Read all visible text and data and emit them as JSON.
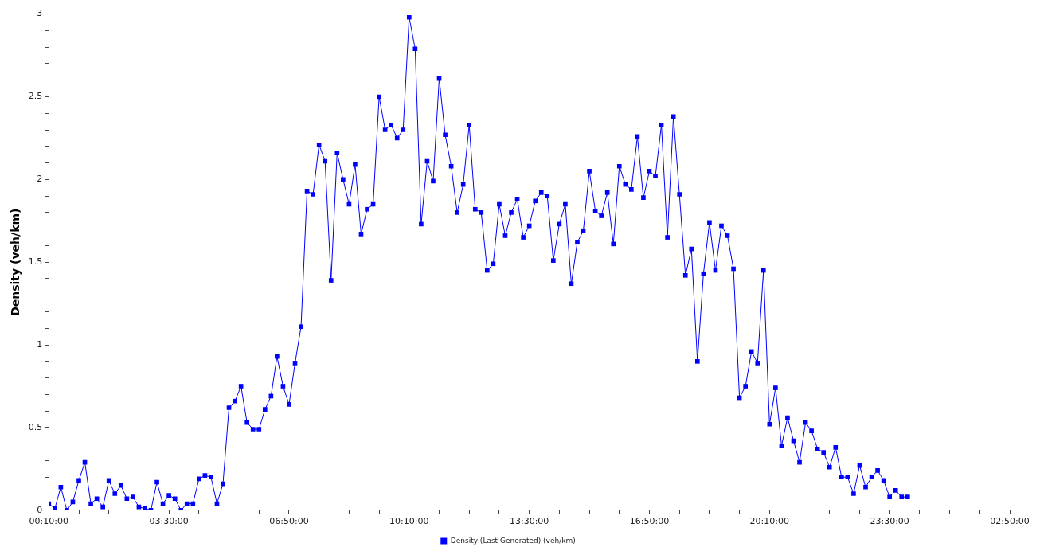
{
  "chart_data": {
    "type": "line",
    "ylabel": "Density (veh/km)",
    "x": [
      "2000-01-01T00:10",
      "2000-01-01T00:20",
      "2000-01-01T00:30",
      "2000-01-01T00:40",
      "2000-01-01T00:50",
      "2000-01-01T01:00",
      "2000-01-01T01:10",
      "2000-01-01T01:20",
      "2000-01-01T01:30",
      "2000-01-01T01:40",
      "2000-01-01T01:50",
      "2000-01-01T02:00",
      "2000-01-01T02:10",
      "2000-01-01T02:20",
      "2000-01-01T02:30",
      "2000-01-01T02:40",
      "2000-01-01T02:50",
      "2000-01-01T03:00",
      "2000-01-01T03:10",
      "2000-01-01T03:20",
      "2000-01-01T03:30",
      "2000-01-01T03:40",
      "2000-01-01T03:50",
      "2000-01-01T04:00",
      "2000-01-01T04:10",
      "2000-01-01T04:20",
      "2000-01-01T04:30",
      "2000-01-01T04:40",
      "2000-01-01T04:50",
      "2000-01-01T05:00",
      "2000-01-01T05:10",
      "2000-01-01T05:20",
      "2000-01-01T05:30",
      "2000-01-01T05:40",
      "2000-01-01T05:50",
      "2000-01-01T06:00",
      "2000-01-01T06:10",
      "2000-01-01T06:20",
      "2000-01-01T06:30",
      "2000-01-01T06:40",
      "2000-01-01T06:50",
      "2000-01-01T07:00",
      "2000-01-01T07:10",
      "2000-01-01T07:20",
      "2000-01-01T07:30",
      "2000-01-01T07:40",
      "2000-01-01T07:50",
      "2000-01-01T08:00",
      "2000-01-01T08:10",
      "2000-01-01T08:20",
      "2000-01-01T08:30",
      "2000-01-01T08:40",
      "2000-01-01T08:50",
      "2000-01-01T09:00",
      "2000-01-01T09:10",
      "2000-01-01T09:20",
      "2000-01-01T09:30",
      "2000-01-01T09:40",
      "2000-01-01T09:50",
      "2000-01-01T10:00",
      "2000-01-01T10:10",
      "2000-01-01T10:20",
      "2000-01-01T10:30",
      "2000-01-01T10:40",
      "2000-01-01T10:50",
      "2000-01-01T11:00",
      "2000-01-01T11:10",
      "2000-01-01T11:20",
      "2000-01-01T11:30",
      "2000-01-01T11:40",
      "2000-01-01T11:50",
      "2000-01-01T12:00",
      "2000-01-01T12:10",
      "2000-01-01T12:20",
      "2000-01-01T12:30",
      "2000-01-01T12:40",
      "2000-01-01T12:50",
      "2000-01-01T13:00",
      "2000-01-01T13:10",
      "2000-01-01T13:20",
      "2000-01-01T13:30",
      "2000-01-01T13:40",
      "2000-01-01T13:50",
      "2000-01-01T14:00",
      "2000-01-01T14:10",
      "2000-01-01T14:20",
      "2000-01-01T14:30",
      "2000-01-01T14:40",
      "2000-01-01T14:50",
      "2000-01-01T15:00",
      "2000-01-01T15:10",
      "2000-01-01T15:20",
      "2000-01-01T15:30",
      "2000-01-01T15:40",
      "2000-01-01T15:50",
      "2000-01-01T16:00",
      "2000-01-01T16:10",
      "2000-01-01T16:20",
      "2000-01-01T16:30",
      "2000-01-01T16:40",
      "2000-01-01T16:50",
      "2000-01-01T17:00",
      "2000-01-01T17:10",
      "2000-01-01T17:20",
      "2000-01-01T17:30",
      "2000-01-01T17:40",
      "2000-01-01T17:50",
      "2000-01-01T18:00",
      "2000-01-01T18:10",
      "2000-01-01T18:20",
      "2000-01-01T18:30",
      "2000-01-01T18:40",
      "2000-01-01T18:50",
      "2000-01-01T19:00",
      "2000-01-01T19:10",
      "2000-01-01T19:20",
      "2000-01-01T19:30",
      "2000-01-01T19:40",
      "2000-01-01T19:50",
      "2000-01-01T20:00",
      "2000-01-01T20:10",
      "2000-01-01T20:20",
      "2000-01-01T20:30",
      "2000-01-01T20:40",
      "2000-01-01T20:50",
      "2000-01-01T21:00",
      "2000-01-01T21:10",
      "2000-01-01T21:20",
      "2000-01-01T21:30",
      "2000-01-01T21:40",
      "2000-01-01T21:50",
      "2000-01-01T22:00",
      "2000-01-01T22:10",
      "2000-01-01T22:20",
      "2000-01-01T22:30",
      "2000-01-01T22:40",
      "2000-01-01T22:50",
      "2000-01-01T23:00",
      "2000-01-01T23:10",
      "2000-01-01T23:20",
      "2000-01-01T23:30",
      "2000-01-01T23:40",
      "2000-01-01T23:50",
      "2000-01-02T00:00"
    ],
    "series": [
      {
        "name": "Density (Last Generated) (veh/km)",
        "color": "#0000ff",
        "values": [
          0.04,
          0.01,
          0.14,
          0.0,
          0.05,
          0.18,
          0.29,
          0.04,
          0.07,
          0.02,
          0.18,
          0.1,
          0.15,
          0.07,
          0.08,
          0.02,
          0.01,
          0.0,
          0.17,
          0.04,
          0.09,
          0.07,
          0.0,
          0.04,
          0.04,
          0.19,
          0.21,
          0.2,
          0.04,
          0.16,
          0.62,
          0.66,
          0.75,
          0.53,
          0.49,
          0.49,
          0.61,
          0.69,
          0.93,
          0.75,
          0.64,
          0.89,
          1.11,
          1.93,
          1.91,
          2.21,
          2.11,
          1.39,
          2.16,
          2.0,
          1.85,
          2.09,
          1.67,
          1.82,
          1.85,
          2.5,
          2.3,
          2.33,
          2.25,
          2.3,
          2.98,
          2.79,
          1.73,
          2.11,
          1.99,
          2.61,
          2.27,
          2.08,
          1.8,
          1.97,
          2.33,
          1.82,
          1.8,
          1.45,
          1.49,
          1.85,
          1.66,
          1.8,
          1.88,
          1.65,
          1.72,
          1.87,
          1.92,
          1.9,
          1.51,
          1.73,
          1.85,
          1.37,
          1.62,
          1.69,
          2.05,
          1.81,
          1.78,
          1.92,
          1.61,
          2.08,
          1.97,
          1.94,
          2.26,
          1.89,
          2.05,
          2.02,
          2.33,
          1.65,
          2.38,
          1.91,
          1.42,
          1.58,
          0.9,
          1.43,
          1.74,
          1.45,
          1.72,
          1.66,
          1.46,
          0.68,
          0.75,
          0.96,
          0.89,
          1.45,
          0.52,
          0.74,
          0.39,
          0.56,
          0.42,
          0.29,
          0.53,
          0.48,
          0.37,
          0.35,
          0.26,
          0.38,
          0.2,
          0.2,
          0.1,
          0.27,
          0.14,
          0.2,
          0.24,
          0.18,
          0.08,
          0.12,
          0.08,
          0.08
        ]
      }
    ],
    "xlim": [
      "2000-01-01T00:10",
      "2000-01-02T02:50"
    ],
    "xticks": [
      {
        "value": "2000-01-01T00:10",
        "label": "00:10:00"
      },
      {
        "value": "2000-01-01T01:00",
        "label": null
      },
      {
        "value": "2000-01-01T01:50",
        "label": null
      },
      {
        "value": "2000-01-01T02:40",
        "label": null
      },
      {
        "value": "2000-01-01T03:30",
        "label": "03:30:00"
      },
      {
        "value": "2000-01-01T04:20",
        "label": null
      },
      {
        "value": "2000-01-01T05:10",
        "label": null
      },
      {
        "value": "2000-01-01T06:00",
        "label": null
      },
      {
        "value": "2000-01-01T06:50",
        "label": "06:50:00"
      },
      {
        "value": "2000-01-01T07:40",
        "label": null
      },
      {
        "value": "2000-01-01T08:30",
        "label": null
      },
      {
        "value": "2000-01-01T09:20",
        "label": null
      },
      {
        "value": "2000-01-01T10:10",
        "label": "10:10:00"
      },
      {
        "value": "2000-01-01T11:00",
        "label": null
      },
      {
        "value": "2000-01-01T11:50",
        "label": null
      },
      {
        "value": "2000-01-01T12:40",
        "label": null
      },
      {
        "value": "2000-01-01T13:30",
        "label": "13:30:00"
      },
      {
        "value": "2000-01-01T14:20",
        "label": null
      },
      {
        "value": "2000-01-01T15:10",
        "label": null
      },
      {
        "value": "2000-01-01T16:00",
        "label": null
      },
      {
        "value": "2000-01-01T16:50",
        "label": "16:50:00"
      },
      {
        "value": "2000-01-01T17:40",
        "label": null
      },
      {
        "value": "2000-01-01T18:30",
        "label": null
      },
      {
        "value": "2000-01-01T19:20",
        "label": null
      },
      {
        "value": "2000-01-01T20:10",
        "label": "20:10:00"
      },
      {
        "value": "2000-01-01T21:00",
        "label": null
      },
      {
        "value": "2000-01-01T21:50",
        "label": null
      },
      {
        "value": "2000-01-01T22:40",
        "label": null
      },
      {
        "value": "2000-01-01T23:30",
        "label": "23:30:00"
      },
      {
        "value": "2000-01-02T00:20",
        "label": null
      },
      {
        "value": "2000-01-02T01:10",
        "label": null
      },
      {
        "value": "2000-01-02T02:00",
        "label": null
      },
      {
        "value": "2000-01-02T02:50",
        "label": "02:50:00"
      }
    ],
    "ylim": [
      0,
      3
    ],
    "yticks": [
      0,
      {
        "value": 0.1,
        "label": null
      },
      {
        "value": 0.2,
        "label": null
      },
      {
        "value": 0.3,
        "label": null
      },
      {
        "value": 0.4,
        "label": null
      },
      0.5,
      {
        "value": 0.6,
        "label": null
      },
      {
        "value": 0.7,
        "label": null
      },
      {
        "value": 0.8,
        "label": null
      },
      {
        "value": 0.9,
        "label": null
      },
      1,
      {
        "value": 1.1,
        "label": null
      },
      {
        "value": 1.2,
        "label": null
      },
      {
        "value": 1.3,
        "label": null
      },
      {
        "value": 1.4,
        "label": null
      },
      1.5,
      {
        "value": 1.6,
        "label": null
      },
      {
        "value": 1.7,
        "label": null
      },
      {
        "value": 1.8,
        "label": null
      },
      {
        "value": 1.9,
        "label": null
      },
      2,
      {
        "value": 2.1,
        "label": null
      },
      {
        "value": 2.2,
        "label": null
      },
      {
        "value": 2.3,
        "label": null
      },
      {
        "value": 2.4,
        "label": null
      },
      2.5,
      {
        "value": 2.6,
        "label": null
      },
      {
        "value": 2.7,
        "label": null
      },
      {
        "value": 2.8,
        "label": null
      },
      {
        "value": 2.9,
        "label": null
      },
      3
    ],
    "grid": false,
    "legend": "bottom",
    "marker": "square",
    "line_style": "solid"
  }
}
